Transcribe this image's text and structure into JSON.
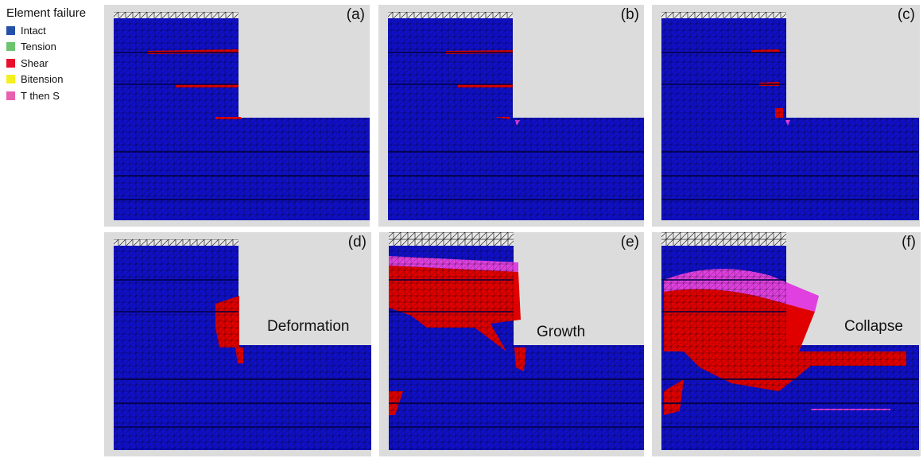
{
  "legend": {
    "title": "Element failure",
    "items": [
      {
        "label": "Intact",
        "color": "#2450a8"
      },
      {
        "label": "Tension",
        "color": "#6cc46c"
      },
      {
        "label": "Shear",
        "color": "#e8102c"
      },
      {
        "label": "Bitension",
        "color": "#f4f020"
      },
      {
        "label": "T then S",
        "color": "#e860b0"
      }
    ]
  },
  "colors": {
    "intact_mesh": "#1010c8",
    "shear": "#e00000",
    "t_then_s": "#e040e0",
    "background": "#dcdcdc"
  },
  "panels": [
    {
      "label": "(a)",
      "stage": ""
    },
    {
      "label": "(b)",
      "stage": ""
    },
    {
      "label": "(c)",
      "stage": ""
    },
    {
      "label": "(d)",
      "stage": "Deformation"
    },
    {
      "label": "(e)",
      "stage": "Growth"
    },
    {
      "label": "(f)",
      "stage": "Collapse"
    }
  ]
}
